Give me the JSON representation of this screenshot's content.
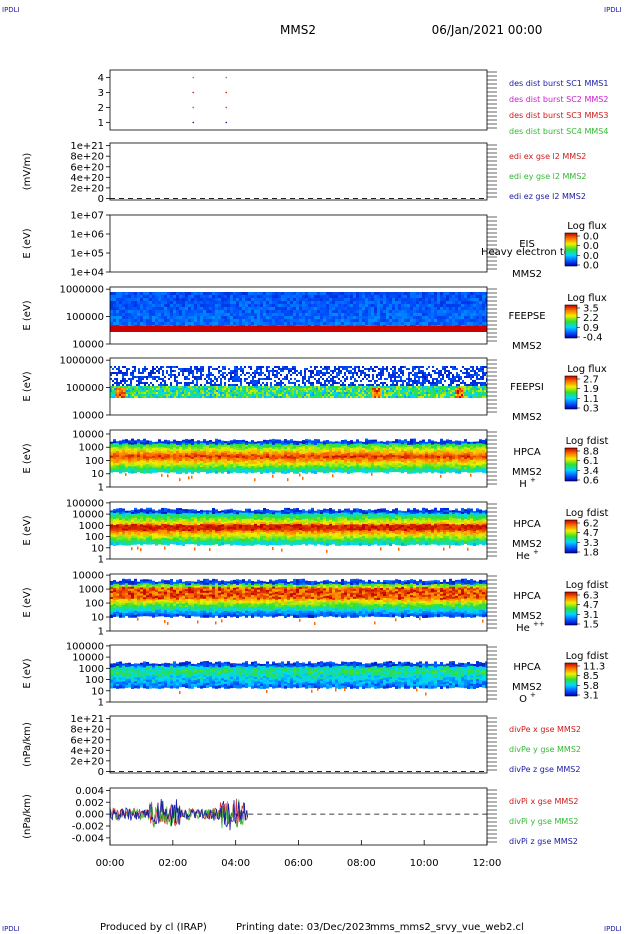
{
  "header": {
    "corner_mark": "IPDLI",
    "spacecraft": "MMS2",
    "date": "06/Jan/2021 00:00"
  },
  "footer": {
    "produced_by": "Produced by cl (IRAP)",
    "printing_date": "Printing date: 03/Dec/2023",
    "script_name": "mms_mms2_srvy_vue_web2.cl"
  },
  "time_axis": {
    "range_hours": [
      0,
      12
    ],
    "tick_labels": [
      "00:00",
      "02:00",
      "04:00",
      "06:00",
      "08:00",
      "10:00",
      "12:00"
    ]
  },
  "colors": {
    "blue": "#1a1aa6",
    "magenta": "#cc1ccc",
    "red": "#cc1a1a",
    "green": "#33b833"
  },
  "chart_data": [
    {
      "id": "des-dist",
      "type": "scatter",
      "ylim": [
        0.5,
        4.5
      ],
      "y_ticks": [
        "1",
        "2",
        "3",
        "4"
      ],
      "y_tick_values": [
        1,
        2,
        3,
        4
      ],
      "ylabel": "",
      "legend": [
        {
          "label": "des dist burst SC1 MMS1",
          "color": "#1a1aa6"
        },
        {
          "label": "des dist burst SC2 MMS2",
          "color": "#cc1ccc"
        },
        {
          "label": "des dist burst SC3 MMS3",
          "color": "#cc1a1a"
        },
        {
          "label": "des dist burst SC4 MMS4",
          "color": "#33b833"
        }
      ],
      "series": [
        {
          "y": 1,
          "color": "#1a1aa6",
          "x": [
            2.65,
            3.7
          ]
        },
        {
          "y": 2,
          "color": "#cc1ccc",
          "x": [
            2.65,
            3.7
          ]
        },
        {
          "y": 3,
          "color": "#cc1a1a",
          "x": [
            2.65,
            3.7
          ]
        },
        {
          "y": 4,
          "color": "#33b833",
          "x": [
            2.65,
            3.7
          ]
        }
      ]
    },
    {
      "id": "edi-e",
      "type": "line",
      "ylabel": "(mV/m)",
      "y_ticks": [
        "1e+21",
        "8e+20",
        "6e+20",
        "4e+20",
        "2e+20",
        "0"
      ],
      "y_tick_values": [
        1e+21,
        8e+20,
        6e+20,
        4e+20,
        2e+20,
        0
      ],
      "ylim": [
        -3e+19,
        1.05e+21
      ],
      "zero_line": true,
      "legend": [
        {
          "label": "edi ex gse l2 MMS2",
          "color": "#cc1a1a"
        },
        {
          "label": "edi ey gse l2 MMS2",
          "color": "#33b833"
        },
        {
          "label": "edi ez gse l2 MMS2",
          "color": "#1a1aa6"
        }
      ]
    },
    {
      "id": "eis",
      "type": "heatmap",
      "ylabel": "E (eV)",
      "y_scale": "log",
      "ylim": [
        10000.0,
        10000000.0
      ],
      "y_ticks": [
        "1e+07",
        "1e+06",
        "1e+05",
        "1e+04"
      ],
      "y_tick_values": [
        10000000.0,
        1000000.0,
        100000.0,
        10000.0
      ],
      "instrument": "EIS",
      "spacecraft": "MMS2",
      "overlay_text": "Heavy electron to",
      "colorbar": {
        "title": "Log flux",
        "labels": [
          "0.0",
          "0.0",
          "0.0",
          "0.0"
        ]
      },
      "empty": true
    },
    {
      "id": "feepse",
      "type": "heatmap",
      "ylabel": "E (eV)",
      "y_scale": "log",
      "ylim": [
        10000.0,
        1200000.0
      ],
      "y_ticks": [
        "1000000",
        "100000",
        "10000"
      ],
      "y_tick_values": [
        1000000.0,
        100000.0,
        10000.0
      ],
      "instrument": "FEEPSE",
      "spacecraft": "MMS2",
      "colorbar": {
        "title": "Log flux",
        "labels": [
          "3.5",
          "2.2",
          "0.9",
          "-0.4"
        ]
      }
    },
    {
      "id": "feepsi",
      "type": "heatmap",
      "ylabel": "E (eV)",
      "y_scale": "log",
      "ylim": [
        10000.0,
        1200000.0
      ],
      "y_ticks": [
        "1000000",
        "100000",
        "10000"
      ],
      "y_tick_values": [
        1000000.0,
        100000.0,
        10000.0
      ],
      "instrument": "FEEPSI",
      "spacecraft": "MMS2",
      "colorbar": {
        "title": "Log flux",
        "labels": [
          "2.7",
          "1.9",
          "1.1",
          "0.3"
        ]
      }
    },
    {
      "id": "hpca-h",
      "type": "heatmap",
      "ylabel": "E (eV)",
      "y_scale": "log",
      "ylim": [
        1,
        20000.0
      ],
      "y_ticks": [
        "10000",
        "1000",
        "100",
        "10",
        "1"
      ],
      "y_tick_values": [
        10000.0,
        1000.0,
        100.0,
        10,
        1
      ],
      "instrument": "HPCA",
      "spacecraft": "MMS2",
      "species": "H",
      "charge": "+",
      "colorbar": {
        "title": "Log fdist",
        "labels": [
          "8.8",
          "6.1",
          "3.4",
          "0.6"
        ]
      }
    },
    {
      "id": "hpca-he1",
      "type": "heatmap",
      "ylabel": "E (eV)",
      "y_scale": "log",
      "ylim": [
        1,
        120000.0
      ],
      "y_ticks": [
        "100000",
        "10000",
        "1000",
        "100",
        "10",
        "1"
      ],
      "y_tick_values": [
        100000.0,
        10000.0,
        1000.0,
        100.0,
        10,
        1
      ],
      "instrument": "HPCA",
      "spacecraft": "MMS2",
      "species": "He",
      "charge": "+",
      "colorbar": {
        "title": "Log fdist",
        "labels": [
          "6.2",
          "4.7",
          "3.3",
          "1.8"
        ]
      }
    },
    {
      "id": "hpca-he2",
      "type": "heatmap",
      "ylabel": "E (eV)",
      "y_scale": "log",
      "ylim": [
        1,
        12000.0
      ],
      "y_ticks": [
        "10000",
        "1000",
        "100",
        "10",
        "1"
      ],
      "y_tick_values": [
        10000.0,
        1000.0,
        100.0,
        10,
        1
      ],
      "instrument": "HPCA",
      "spacecraft": "MMS2",
      "species": "He",
      "charge": "++",
      "colorbar": {
        "title": "Log fdist",
        "labels": [
          "6.3",
          "4.7",
          "3.1",
          "1.5"
        ]
      }
    },
    {
      "id": "hpca-o",
      "type": "heatmap",
      "ylabel": "E (eV)",
      "y_scale": "log",
      "ylim": [
        1,
        120000.0
      ],
      "y_ticks": [
        "100000",
        "10000",
        "1000",
        "100",
        "10",
        "1"
      ],
      "y_tick_values": [
        100000.0,
        10000.0,
        1000.0,
        100.0,
        10,
        1
      ],
      "instrument": "HPCA",
      "spacecraft": "MMS2",
      "species": "O",
      "charge": "+",
      "colorbar": {
        "title": "Log fdist",
        "labels": [
          "11.3",
          "8.5",
          "5.8",
          "3.1"
        ]
      }
    },
    {
      "id": "divpe",
      "type": "line",
      "ylabel": "(nPa/km)",
      "y_ticks": [
        "1e+21",
        "8e+20",
        "6e+20",
        "4e+20",
        "2e+20",
        "0"
      ],
      "y_tick_values": [
        1e+21,
        8e+20,
        6e+20,
        4e+20,
        2e+20,
        0
      ],
      "ylim": [
        -3e+19,
        1.05e+21
      ],
      "zero_line": true,
      "legend": [
        {
          "label": "divPe x gse MMS2",
          "color": "#cc1a1a"
        },
        {
          "label": "divPe y gse MMS2",
          "color": "#33b833"
        },
        {
          "label": "divPe z gse MMS2",
          "color": "#1a1aa6"
        }
      ]
    },
    {
      "id": "divpi",
      "type": "line",
      "ylabel": "(nPa/km)",
      "y_ticks": [
        "0.004",
        "0.002",
        "0.000",
        "-0.002",
        "-0.004"
      ],
      "y_tick_values": [
        0.004,
        0.002,
        0,
        -0.002,
        -0.004
      ],
      "ylim": [
        -0.0052,
        0.0044
      ],
      "zero_line": true,
      "data_end_hour": 4.4,
      "legend": [
        {
          "label": "divPi x gse MMS2",
          "color": "#cc1a1a"
        },
        {
          "label": "divPi y gse MMS2",
          "color": "#33b833"
        },
        {
          "label": "divPi z gse MMS2",
          "color": "#1a1aa6"
        }
      ]
    }
  ]
}
